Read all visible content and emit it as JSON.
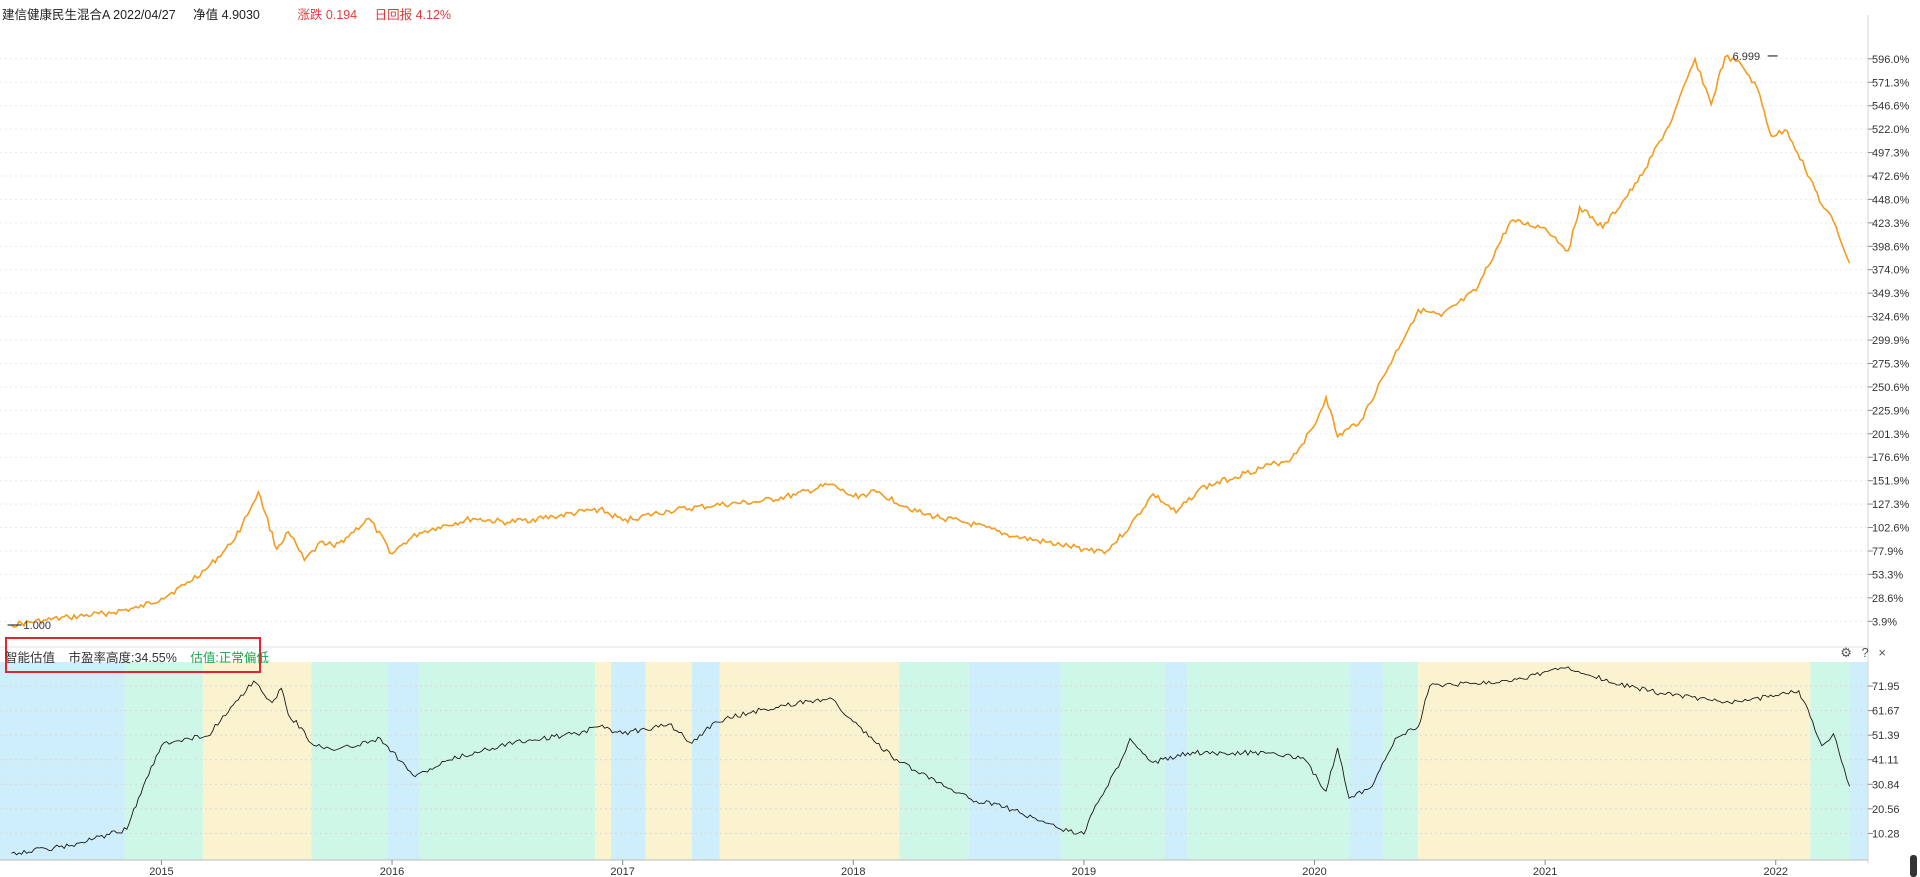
{
  "header": {
    "fund_name": "建信健康民生混合A 2022/04/27",
    "nav_label": "净值 4.9030",
    "change_label": "涨跌 0.194",
    "return_label": "日回报 4.12%"
  },
  "valuation": {
    "title": "智能估值",
    "pe_height": "市盈率高度:34.55%",
    "status": "估值:正常偏低"
  },
  "controls": {
    "settings": "⚙",
    "help": "?",
    "close": "×"
  },
  "colors": {
    "nav_line": "#f39c1e",
    "pe_line": "#1a1a1a",
    "band_low": "#cdeefa",
    "band_normal_low": "#cff7e8",
    "band_normal_high": "#fbf3cf",
    "accent_red": "#e23a3a",
    "status_green": "#1aa34a"
  },
  "chart_data": [
    {
      "type": "line",
      "name": "nav_return_chart",
      "ylim": [
        0,
        620
      ],
      "y_ticks": [
        "596.0%",
        "571.3%",
        "546.6%",
        "522.0%",
        "497.3%",
        "472.6%",
        "448.0%",
        "423.3%",
        "398.6%",
        "374.0%",
        "349.3%",
        "324.6%",
        "299.9%",
        "275.3%",
        "250.6%",
        "225.9%",
        "201.3%",
        "176.6%",
        "151.9%",
        "127.3%",
        "102.6%",
        "77.9%",
        "53.3%",
        "28.6%",
        "3.9%"
      ],
      "y_tick_values": [
        596.0,
        571.3,
        546.6,
        522.0,
        497.3,
        472.6,
        448.0,
        423.3,
        398.6,
        374.0,
        349.3,
        324.6,
        299.9,
        275.3,
        250.6,
        225.9,
        201.3,
        176.6,
        151.9,
        127.3,
        102.6,
        77.9,
        53.3,
        28.6,
        3.9
      ],
      "annotations": [
        {
          "text": "1.000",
          "x": 2014.35,
          "y": 0
        },
        {
          "text": "6.999",
          "x": 2021.8,
          "y": 599
        }
      ],
      "x": [
        2014.35,
        2014.5,
        2014.6,
        2014.75,
        2014.9,
        2015.0,
        2015.1,
        2015.2,
        2015.3,
        2015.35,
        2015.42,
        2015.45,
        2015.5,
        2015.55,
        2015.62,
        2015.7,
        2015.75,
        2015.8,
        2015.9,
        2016.0,
        2016.05,
        2016.12,
        2016.2,
        2016.35,
        2016.5,
        2016.7,
        2016.9,
        2017.0,
        2017.2,
        2017.4,
        2017.6,
        2017.75,
        2017.9,
        2018.0,
        2018.1,
        2018.3,
        2018.5,
        2018.7,
        2018.9,
        2019.0,
        2019.1,
        2019.2,
        2019.3,
        2019.4,
        2019.5,
        2019.7,
        2019.9,
        2020.0,
        2020.05,
        2020.1,
        2020.15,
        2020.2,
        2020.3,
        2020.45,
        2020.55,
        2020.7,
        2020.85,
        2021.0,
        2021.1,
        2021.15,
        2021.25,
        2021.4,
        2021.55,
        2021.65,
        2021.72,
        2021.78,
        2021.85,
        2021.92,
        2021.98,
        2022.05,
        2022.15,
        2022.2,
        2022.25,
        2022.32
      ],
      "values": [
        0,
        5,
        8,
        12,
        18,
        28,
        42,
        60,
        85,
        105,
        140,
        118,
        80,
        98,
        68,
        88,
        82,
        92,
        112,
        75,
        86,
        97,
        103,
        112,
        108,
        114,
        122,
        110,
        120,
        126,
        130,
        137,
        148,
        135,
        140,
        117,
        107,
        93,
        84,
        80,
        78,
        104,
        138,
        118,
        143,
        160,
        175,
        210,
        240,
        198,
        207,
        215,
        262,
        332,
        325,
        352,
        425,
        418,
        394,
        440,
        418,
        466,
        532,
        596,
        548,
        598,
        590,
        565,
        515,
        520,
        470,
        442,
        425,
        381
      ]
    },
    {
      "type": "line",
      "name": "pe_percentile_chart",
      "ylim": [
        0,
        82
      ],
      "y_ticks": [
        "71.95",
        "61.67",
        "51.39",
        "41.11",
        "30.84",
        "20.56",
        "10.28"
      ],
      "y_tick_values": [
        71.95,
        61.67,
        51.39,
        41.11,
        30.84,
        20.56,
        10.28
      ],
      "x_ticks": [
        "2015",
        "2016",
        "2017",
        "2018",
        "2019",
        "2020",
        "2021",
        "2022"
      ],
      "x_tick_values": [
        2015,
        2016,
        2017,
        2018,
        2019,
        2020,
        2021,
        2022
      ],
      "x": [
        2014.35,
        2014.6,
        2014.85,
        2014.9,
        2015.0,
        2015.1,
        2015.2,
        2015.3,
        2015.4,
        2015.48,
        2015.52,
        2015.55,
        2015.62,
        2015.65,
        2015.75,
        2015.95,
        2016.1,
        2016.25,
        2016.5,
        2016.8,
        2016.9,
        2017.0,
        2017.2,
        2017.3,
        2017.4,
        2017.6,
        2017.9,
        2018.0,
        2018.1,
        2018.2,
        2018.35,
        2018.5,
        2018.7,
        2018.9,
        2019.0,
        2019.05,
        2019.15,
        2019.2,
        2019.3,
        2019.45,
        2019.6,
        2019.8,
        2019.95,
        2020.05,
        2020.1,
        2020.15,
        2020.25,
        2020.35,
        2020.45,
        2020.5,
        2020.7,
        2020.9,
        2021.1,
        2021.3,
        2021.5,
        2021.8,
        2022.0,
        2022.1,
        2022.15,
        2022.2,
        2022.25,
        2022.32
      ],
      "values": [
        2,
        5,
        12,
        25,
        47,
        50,
        51,
        63,
        74,
        65,
        71,
        60,
        53,
        48,
        45,
        50,
        34,
        41,
        48,
        52,
        55,
        52,
        56,
        48,
        57,
        62,
        67,
        57,
        48,
        40,
        33,
        25,
        20,
        12,
        10,
        22,
        38,
        50,
        40,
        44,
        44,
        44,
        42,
        28,
        46,
        25,
        30,
        50,
        55,
        72,
        73,
        75,
        80,
        73,
        69,
        65,
        68,
        70,
        59,
        47,
        52,
        30
      ]
    }
  ]
}
